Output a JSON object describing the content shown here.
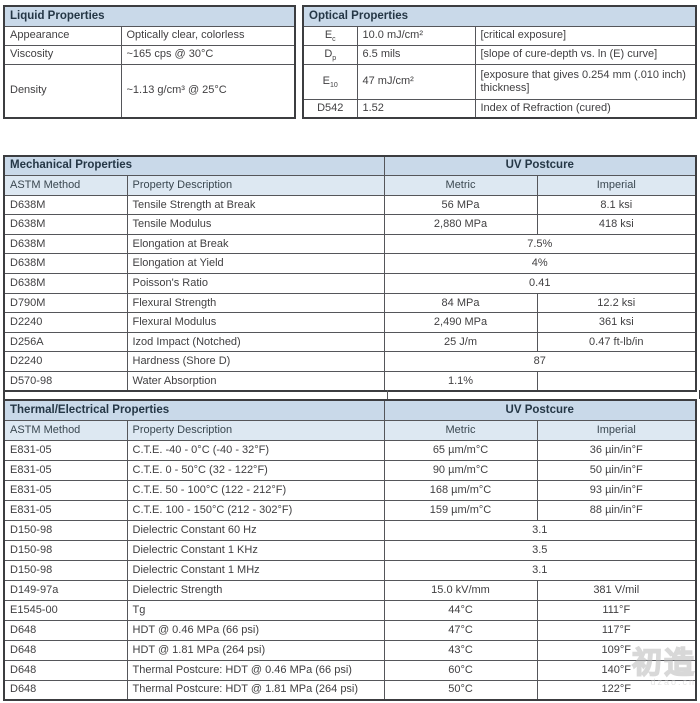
{
  "colors": {
    "header_bg": "#c9d9e9",
    "subheader_bg": "#dde8f2",
    "border": "#55565a",
    "outer_border": "#3c3d40",
    "text": "#414042",
    "header_text": "#253746"
  },
  "liquid_table": {
    "title": "Liquid Properties",
    "rows": [
      {
        "label": "Appearance",
        "value": "Optically clear, colorless"
      },
      {
        "label": "Viscosity",
        "value": "~165 cps @ 30°C"
      },
      {
        "label": "Density",
        "value": "~1.13 g/cm³ @ 25°C"
      }
    ]
  },
  "optical_table": {
    "title": "Optical Properties",
    "rows": [
      {
        "symbol": "E",
        "sub": "c",
        "value": "10.0 mJ/cm²",
        "desc": "[critical exposure]"
      },
      {
        "symbol": "D",
        "sub": "p",
        "value": "6.5 mils",
        "desc": "[slope of cure-depth vs. ln (E) curve]"
      },
      {
        "symbol": "E",
        "sub": "10",
        "value": "47 mJ/cm²",
        "desc": "[exposure that gives 0.254 mm (.010 inch) thickness]"
      },
      {
        "symbol": "D542",
        "sub": "",
        "value": "1.52",
        "desc": "Index of Refraction (cured)"
      }
    ]
  },
  "mechanical_table": {
    "title": "Mechanical Properties",
    "group_header": "UV Postcure",
    "columns": [
      "ASTM Method",
      "Property Description",
      "Metric",
      "Imperial"
    ],
    "rows": [
      {
        "method": "D638M",
        "property": "Tensile Strength at Break",
        "metric": "56 MPa",
        "imperial": "8.1 ksi",
        "span": false
      },
      {
        "method": "D638M",
        "property": "Tensile Modulus",
        "metric": "2,880 MPa",
        "imperial": "418 ksi",
        "span": false
      },
      {
        "method": "D638M",
        "property": "Elongation at Break",
        "metric": "7.5%",
        "imperial": "",
        "span": true
      },
      {
        "method": "D638M",
        "property": "Elongation at Yield",
        "metric": "4%",
        "imperial": "",
        "span": true
      },
      {
        "method": "D638M",
        "property": "Poisson's Ratio",
        "metric": "0.41",
        "imperial": "",
        "span": true
      },
      {
        "method": "D790M",
        "property": "Flexural Strength",
        "metric": "84 MPa",
        "imperial": "12.2 ksi",
        "span": false
      },
      {
        "method": "D2240",
        "property": "Flexural Modulus",
        "metric": "2,490 MPa",
        "imperial": "361 ksi",
        "span": false
      },
      {
        "method": "D256A",
        "property": "Izod Impact (Notched)",
        "metric": "25 J/m",
        "imperial": "0.47 ft-lb/in",
        "span": false
      },
      {
        "method": "D2240",
        "property": "Hardness (Shore D)",
        "metric": "87",
        "imperial": "",
        "span": true
      },
      {
        "method": "D570-98",
        "property": "Water Absorption",
        "metric": "1.1%",
        "imperial": "",
        "span": false
      }
    ]
  },
  "thermal_table": {
    "title": "Thermal/Electrical Properties",
    "group_header": "UV Postcure",
    "columns": [
      "ASTM Method",
      "Property Description",
      "Metric",
      "Imperial"
    ],
    "rows": [
      {
        "method": "E831-05",
        "property": "C.T.E. -40 - 0°C (-40 - 32°F)",
        "metric": "65 µm/m°C",
        "imperial": "36 µin/in°F",
        "span": false
      },
      {
        "method": "E831-05",
        "property": "C.T.E. 0 - 50°C (32 - 122°F)",
        "metric": "90 µm/m°C",
        "imperial": "50 µin/in°F",
        "span": false
      },
      {
        "method": "E831-05",
        "property": "C.T.E. 50 - 100°C (122 - 212°F)",
        "metric": "168 µm/m°C",
        "imperial": "93 µin/in°F",
        "span": false
      },
      {
        "method": "E831-05",
        "property": "C.T.E. 100 - 150°C (212 - 302°F)",
        "metric": "159 µm/m°C",
        "imperial": "88 µin/in°F",
        "span": false
      },
      {
        "method": "D150-98",
        "property": "Dielectric Constant 60 Hz",
        "metric": "3.1",
        "imperial": "",
        "span": true
      },
      {
        "method": "D150-98",
        "property": "Dielectric Constant 1 KHz",
        "metric": "3.5",
        "imperial": "",
        "span": true
      },
      {
        "method": "D150-98",
        "property": "Dielectric Constant 1 MHz",
        "metric": "3.1",
        "imperial": "",
        "span": true
      },
      {
        "method": "D149-97a",
        "property": "Dielectric Strength",
        "metric": "15.0 kV/mm",
        "imperial": "381 V/mil",
        "span": false
      },
      {
        "method": "E1545-00",
        "property": "Tg",
        "metric": "44°C",
        "imperial": "111°F",
        "span": false
      },
      {
        "method": "D648",
        "property": "HDT @ 0.46 MPa (66 psi)",
        "metric": "47°C",
        "imperial": "117°F",
        "span": false
      },
      {
        "method": "D648",
        "property": "HDT @ 1.81 MPa (264 psi)",
        "metric": "43°C",
        "imperial": "109°F",
        "span": false
      },
      {
        "method": "D648",
        "property": "Thermal Postcure: HDT @ 0.46 MPa (66 psi)",
        "metric": "60°C",
        "imperial": "140°F",
        "span": false
      },
      {
        "method": "D648",
        "property": "Thermal Postcure: HDT @ 1.81 MPa (264 psi)",
        "metric": "50°C",
        "imperial": "122°F",
        "span": false
      }
    ]
  },
  "watermark": {
    "text": "初造",
    "subtext": "dzao.cn"
  }
}
